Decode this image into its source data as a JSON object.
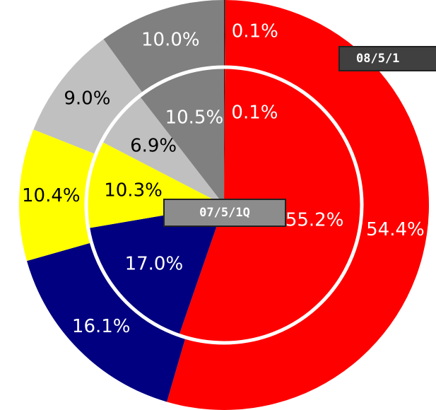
{
  "chart_data": {
    "type": "pie",
    "colors": [
      "#202020",
      "#ff0000",
      "#000080",
      "#ffff00",
      "#c0c0c0",
      "#808080"
    ],
    "label_colors": [
      "#ffffff",
      "#ffffff",
      "#ffffff",
      "#000000",
      "#000000",
      "#ffffff"
    ],
    "series": [
      {
        "name": "08/5/1",
        "values": [
          0.1,
          54.4,
          16.1,
          10.4,
          9.0,
          10.0
        ],
        "value_labels": [
          "0.1%",
          "54.4%",
          "16.1%",
          "10.4%",
          "9.0%",
          "10.0%"
        ]
      },
      {
        "name": "07/5/1Q",
        "values": [
          0.1,
          55.2,
          17.0,
          10.3,
          6.9,
          10.5
        ],
        "value_labels": [
          "0.1%",
          "55.2%",
          "17.0%",
          "10.3%",
          "6.9%",
          "10.5%"
        ]
      }
    ]
  }
}
